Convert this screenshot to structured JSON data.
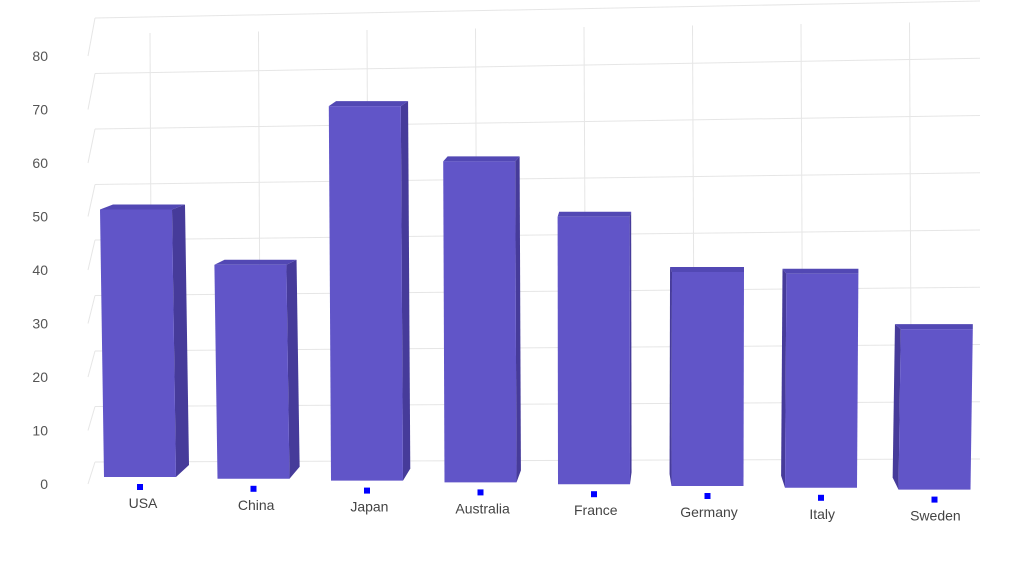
{
  "chart_data": {
    "type": "bar",
    "categories": [
      "USA",
      "China",
      "Japan",
      "Australia",
      "France",
      "Germany",
      "Italy",
      "Sweden"
    ],
    "values": [
      50,
      40,
      70,
      60,
      50,
      40,
      40,
      30
    ],
    "title": "",
    "xlabel": "",
    "ylabel": "",
    "ylim": [
      0,
      80
    ],
    "yticks": [
      0,
      10,
      20,
      30,
      40,
      50,
      60,
      70,
      80
    ],
    "grid": true,
    "legend": "none",
    "style": "3d-column",
    "colors": {
      "bar_front": "#6155c8",
      "bar_side": "#463b9a",
      "bar_top": "#5248b4",
      "grid": "#e6e6e6",
      "marker": "#0000ff"
    }
  }
}
